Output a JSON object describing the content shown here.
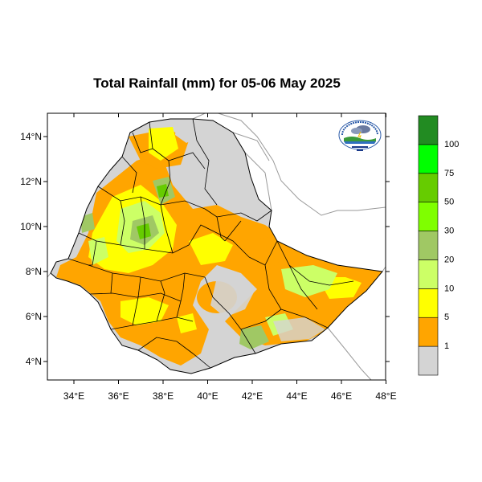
{
  "title": "Total Rainfall (mm) for 05-06 May 2025",
  "axes": {
    "x_ticks": [
      "34°E",
      "36°E",
      "38°E",
      "40°E",
      "42°E",
      "44°E",
      "46°E",
      "48°E"
    ],
    "y_ticks": [
      "14°N",
      "12°N",
      "10°N",
      "8°N",
      "6°N",
      "4°N"
    ]
  },
  "legend": {
    "bins": [
      {
        "label": "1",
        "color": "#d4d4d4"
      },
      {
        "label": "5",
        "color": "#ffa500"
      },
      {
        "label": "10",
        "color": "#ffff00"
      },
      {
        "label": "20",
        "color": "#ccff66"
      },
      {
        "label": "30",
        "color": "#a0c864"
      },
      {
        "label": "50",
        "color": "#7fff00"
      },
      {
        "label": "75",
        "color": "#66cc00"
      },
      {
        "label": "100",
        "color": "#00ff00"
      },
      {
        "label": "",
        "color": "#228b22"
      }
    ]
  },
  "colors": {
    "no_rain": "#d4d4d4",
    "light": "#ffa500",
    "moderate": "#ffff00",
    "heavy": "#66cc00",
    "country_fill": "#d4d4d4",
    "border": "#000000",
    "neighbor_border": "#9a9a9a"
  },
  "logo": {
    "icon": "ethiopian-meteorology-institute-logo"
  }
}
